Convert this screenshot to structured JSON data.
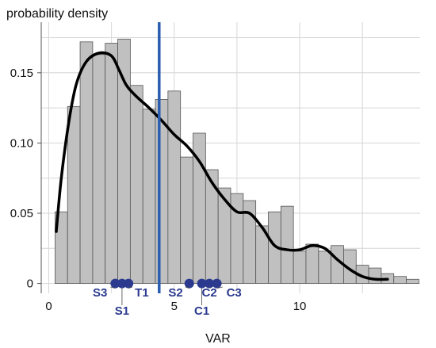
{
  "chart_data": {
    "type": "histogram",
    "ylabel": "probability density",
    "xlabel": "VAR",
    "xlim": [
      -0.3,
      14.8
    ],
    "ylim": [
      -0.007,
      0.186
    ],
    "x_ticks": [
      0,
      5,
      10
    ],
    "y_ticks": [
      0,
      0.05,
      0.1,
      0.15
    ],
    "y_tick_labels": [
      "0",
      "0.05",
      "0.10",
      "0.15"
    ],
    "grid": true,
    "bars": {
      "bin_width": 0.5,
      "start": 0.25,
      "fill": "#c0c0c0",
      "stroke": "#555555",
      "values": [
        0.051,
        0.126,
        0.172,
        0.163,
        0.171,
        0.174,
        0.141,
        0.124,
        0.131,
        0.137,
        0.09,
        0.107,
        0.081,
        0.068,
        0.064,
        0.059,
        0.041,
        0.051,
        0.055,
        0.023,
        0.028,
        0.023,
        0.027,
        0.024,
        0.013,
        0.011,
        0.007,
        0.005,
        0.003
      ]
    },
    "density_curve": {
      "color": "#000000",
      "x": [
        0.3,
        0.5,
        0.8,
        1.1,
        1.5,
        2.0,
        2.5,
        2.8,
        3.1,
        3.5,
        4.0,
        4.5,
        5.0,
        5.5,
        6.0,
        6.5,
        7.0,
        7.5,
        8.0,
        8.5,
        9.0,
        9.5,
        10.0,
        10.5,
        11.0,
        11.5,
        12.0,
        12.5,
        13.0,
        13.5
      ],
      "y": [
        0.037,
        0.075,
        0.115,
        0.142,
        0.158,
        0.164,
        0.162,
        0.152,
        0.141,
        0.133,
        0.125,
        0.116,
        0.106,
        0.098,
        0.087,
        0.072,
        0.06,
        0.051,
        0.05,
        0.04,
        0.027,
        0.024,
        0.024,
        0.027,
        0.025,
        0.017,
        0.01,
        0.005,
        0.003,
        0.003
      ]
    },
    "vline": {
      "x": 4.4,
      "color": "#2a5db0"
    },
    "markers": {
      "color": "#2b3a8f",
      "points": [
        {
          "label": "S3",
          "x": 2.65
        },
        {
          "label": "S1",
          "x": 2.92
        },
        {
          "label": "T1",
          "x": 3.18
        },
        {
          "label": "S2",
          "x": 5.6
        },
        {
          "label": "C1",
          "x": 6.1
        },
        {
          "label": "C2",
          "x": 6.4
        },
        {
          "label": "C3",
          "x": 6.7
        }
      ]
    }
  }
}
